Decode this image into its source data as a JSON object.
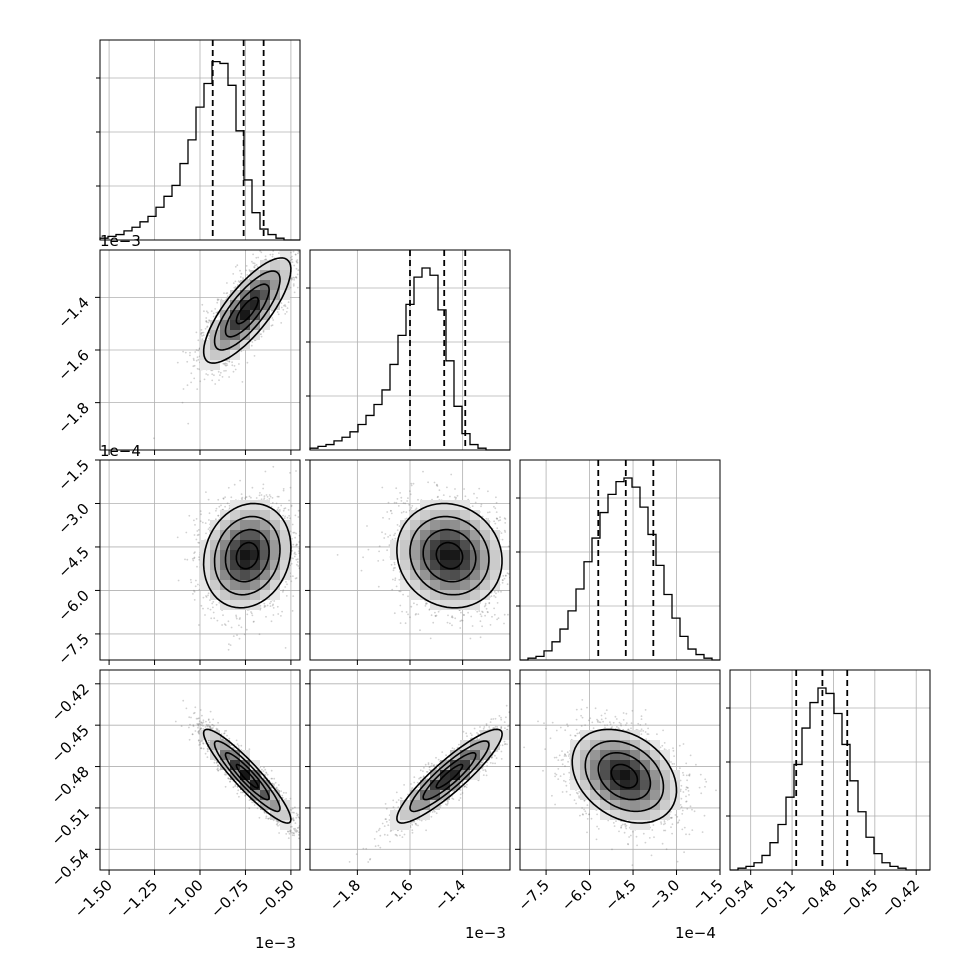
{
  "chart_data": {
    "type": "corner",
    "grid": true,
    "parameters": [
      {
        "index": 0,
        "range": [
          -1.55,
          -0.45
        ],
        "ticks": [
          -1.5,
          -1.25,
          -1.0,
          -0.75,
          -0.5
        ],
        "tick_labels": [
          "−1.50",
          "−1.25",
          "−1.00",
          "−0.75",
          "−0.50"
        ],
        "offset_label": "1e−3",
        "quantiles": [
          -0.93,
          -0.76,
          -0.65
        ],
        "center": -0.74,
        "sigma": 0.12
      },
      {
        "index": 1,
        "range": [
          -1.98,
          -1.22
        ],
        "ticks": [
          -1.8,
          -1.6,
          -1.4
        ],
        "tick_labels": [
          "−1.8",
          "−1.6",
          "−1.4"
        ],
        "offset_label": "1e−3",
        "quantiles": [
          -1.6,
          -1.47,
          -1.39
        ],
        "center": -1.45,
        "sigma": 0.1
      },
      {
        "index": 2,
        "range": [
          -8.4,
          -1.5
        ],
        "ticks": [
          -7.5,
          -6.0,
          -4.5,
          -3.0,
          -1.5
        ],
        "tick_labels": [
          "−7.5",
          "−6.0",
          "−4.5",
          "−3.0",
          "−1.5"
        ],
        "offset_label": "1e−4",
        "quantiles": [
          -5.7,
          -4.75,
          -3.8
        ],
        "center": -4.8,
        "sigma": 0.9
      },
      {
        "index": 3,
        "range": [
          -0.555,
          -0.41
        ],
        "ticks": [
          -0.54,
          -0.51,
          -0.48,
          -0.45,
          -0.42
        ],
        "tick_labels": [
          "−0.54",
          "−0.51",
          "−0.48",
          "−0.45",
          "−0.42"
        ],
        "offset_label": "",
        "quantiles": [
          -0.507,
          -0.488,
          -0.47
        ],
        "center": -0.487,
        "sigma": 0.017
      }
    ],
    "histograms": [
      {
        "param": 0,
        "bins_relative": [
          0.01,
          0.02,
          0.03,
          0.05,
          0.07,
          0.1,
          0.13,
          0.18,
          0.24,
          0.3,
          0.42,
          0.55,
          0.73,
          0.86,
          0.98,
          0.97,
          0.85,
          0.6,
          0.33,
          0.15,
          0.06,
          0.03,
          0.01,
          0.0,
          0.0
        ],
        "yticks_relative": [
          0.0,
          0.33,
          0.66
        ]
      },
      {
        "param": 1,
        "bins_relative": [
          0.01,
          0.02,
          0.03,
          0.05,
          0.07,
          0.1,
          0.14,
          0.19,
          0.25,
          0.33,
          0.47,
          0.63,
          0.8,
          0.95,
          1.0,
          0.96,
          0.77,
          0.49,
          0.24,
          0.09,
          0.03,
          0.01,
          0.0,
          0.0,
          0.0
        ],
        "yticks_relative": [
          0.0,
          0.33,
          0.66
        ]
      },
      {
        "param": 2,
        "bins_relative": [
          0.0,
          0.01,
          0.02,
          0.05,
          0.1,
          0.17,
          0.27,
          0.39,
          0.54,
          0.67,
          0.81,
          0.91,
          0.98,
          1.0,
          0.95,
          0.84,
          0.69,
          0.52,
          0.36,
          0.23,
          0.13,
          0.06,
          0.03,
          0.01,
          0.0
        ],
        "yticks_relative": [
          0.0,
          0.33,
          0.66
        ]
      },
      {
        "param": 3,
        "bins_relative": [
          0.0,
          0.01,
          0.02,
          0.04,
          0.08,
          0.15,
          0.25,
          0.4,
          0.58,
          0.78,
          0.92,
          1.0,
          0.97,
          0.86,
          0.69,
          0.49,
          0.32,
          0.18,
          0.09,
          0.04,
          0.02,
          0.01,
          0.0,
          0.0,
          0.0
        ],
        "yticks_relative": [
          0.0,
          0.33,
          0.66
        ]
      }
    ],
    "pairs": [
      {
        "x_param": 0,
        "y_param": 1,
        "correlation": 0.78,
        "contour_levels": 3
      },
      {
        "x_param": 0,
        "y_param": 2,
        "correlation": 0.15,
        "contour_levels": 3
      },
      {
        "x_param": 1,
        "y_param": 2,
        "correlation": -0.1,
        "contour_levels": 3
      },
      {
        "x_param": 0,
        "y_param": 3,
        "correlation": -0.92,
        "contour_levels": 3
      },
      {
        "x_param": 1,
        "y_param": 3,
        "correlation": 0.9,
        "contour_levels": 3
      },
      {
        "x_param": 2,
        "y_param": 3,
        "correlation": -0.3,
        "contour_levels": 3
      }
    ]
  }
}
